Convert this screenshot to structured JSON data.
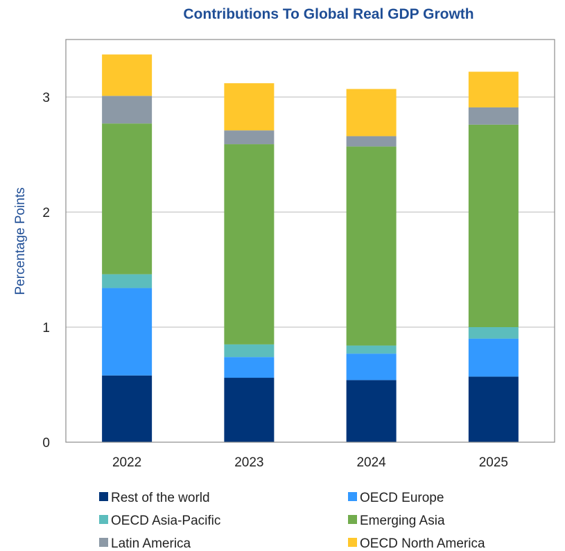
{
  "chart_data": {
    "type": "bar",
    "stacked": true,
    "title": "Contributions To Global Real GDP Growth",
    "xlabel": "",
    "ylabel": "Percentage Points",
    "categories": [
      "2022",
      "2023",
      "2024",
      "2025"
    ],
    "ylim": [
      0,
      3.5
    ],
    "yticks": [
      0,
      1,
      2,
      3
    ],
    "grid": true,
    "legend_position": "bottom",
    "series": [
      {
        "name": "Rest of the world",
        "color": "#003479",
        "values": [
          0.58,
          0.56,
          0.54,
          0.57
        ]
      },
      {
        "name": "OECD Europe",
        "color": "#3399ff",
        "values": [
          0.76,
          0.18,
          0.23,
          0.33
        ]
      },
      {
        "name": "OECD Asia-Pacific",
        "color": "#5cbdbd",
        "values": [
          0.12,
          0.11,
          0.07,
          0.1
        ]
      },
      {
        "name": "Emerging Asia",
        "color": "#72ac4d",
        "values": [
          1.31,
          1.74,
          1.73,
          1.76
        ]
      },
      {
        "name": "Latin America",
        "color": "#8c99a6",
        "values": [
          0.24,
          0.12,
          0.09,
          0.15
        ]
      },
      {
        "name": "OECD North America",
        "color": "#ffc72c",
        "values": [
          0.36,
          0.41,
          0.41,
          0.31
        ]
      }
    ]
  }
}
